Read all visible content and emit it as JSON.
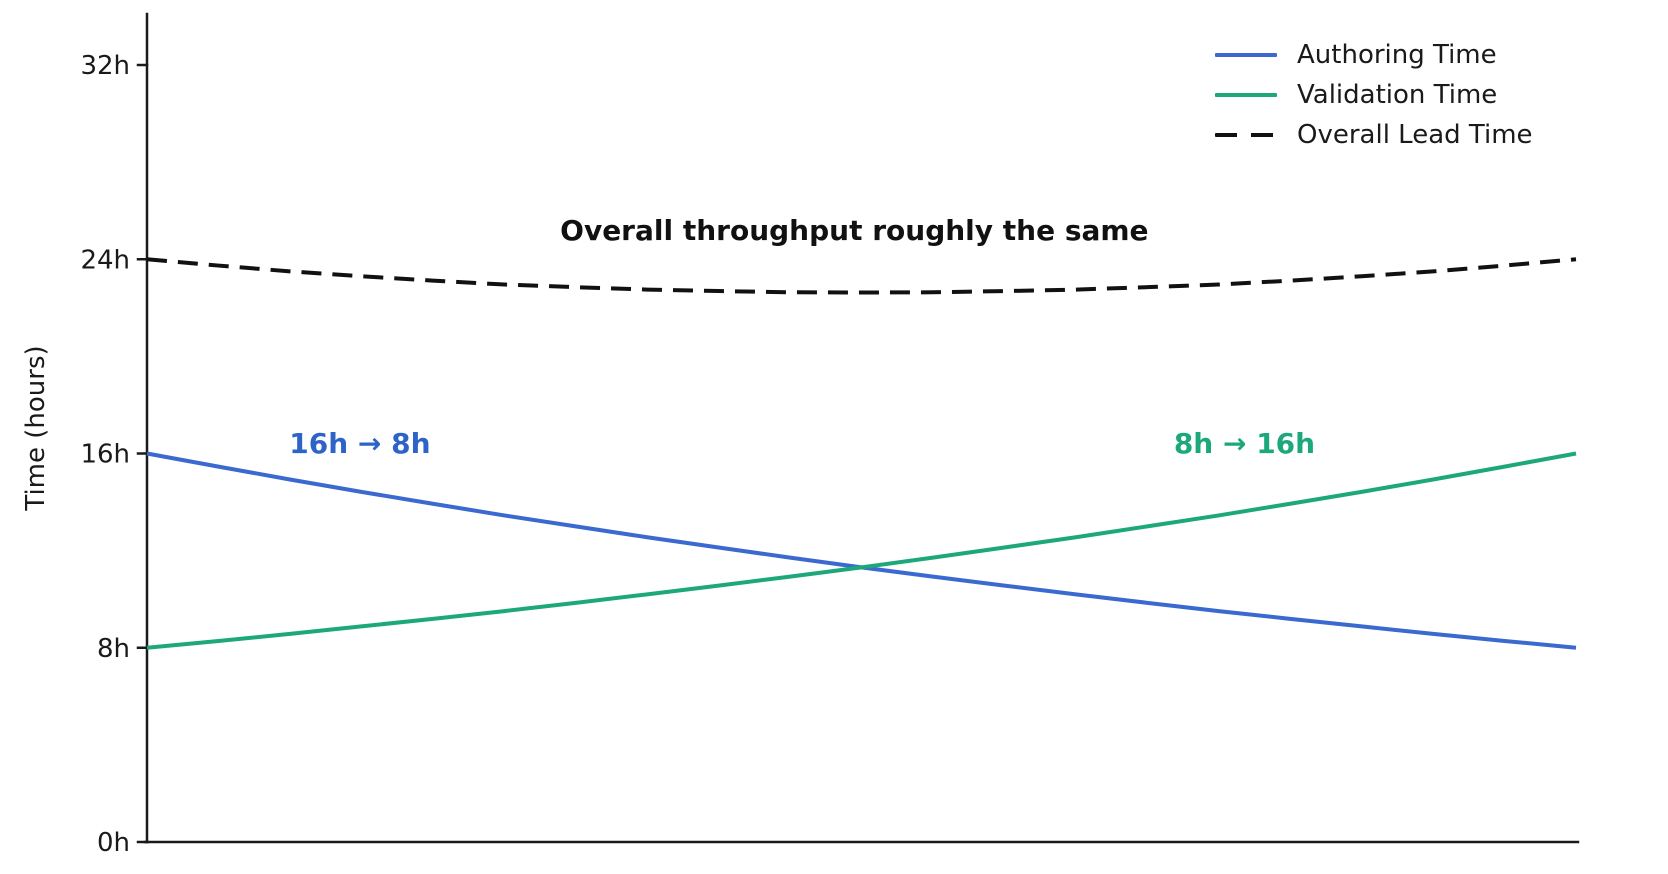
{
  "axis_color": "#1a1a1a",
  "text_color": "#1a1a1a",
  "background_color": "#ffffff",
  "chart_data": {
    "type": "line",
    "title": "",
    "xlabel": "",
    "ylabel": "Time (hours)",
    "x_range": [
      0,
      1
    ],
    "x_ticks_visible": false,
    "ylim": [
      0,
      34
    ],
    "grid": false,
    "legend_position": "upper right",
    "yticks": [
      {
        "value": 0,
        "label": "0h"
      },
      {
        "value": 8,
        "label": "8h"
      },
      {
        "value": 16,
        "label": "16h"
      },
      {
        "value": 24,
        "label": "24h"
      },
      {
        "value": 32,
        "label": "32h"
      }
    ],
    "x": [
      0,
      0.05,
      0.1,
      0.15,
      0.2,
      0.25,
      0.3,
      0.35,
      0.4,
      0.45,
      0.5,
      0.55,
      0.6,
      0.65,
      0.7,
      0.75,
      0.8,
      0.85,
      0.9,
      0.95,
      1
    ],
    "series": [
      {
        "name": "Authoring Time",
        "color": "#3a69d0",
        "dash": false,
        "start_value_hours": 16,
        "end_value_hours": 8,
        "values": [
          16,
          15.46,
          14.93,
          14.42,
          13.93,
          13.45,
          13,
          12.55,
          12.13,
          11.71,
          11.31,
          10.93,
          10.56,
          10.2,
          9.85,
          9.51,
          9.19,
          8.88,
          8.57,
          8.28,
          8
        ]
      },
      {
        "name": "Validation Time",
        "color": "#1da87c",
        "dash": false,
        "start_value_hours": 8,
        "end_value_hours": 16,
        "values": [
          8,
          8.28,
          8.57,
          8.88,
          9.19,
          9.51,
          9.85,
          10.2,
          10.56,
          10.93,
          11.31,
          11.71,
          12.13,
          12.55,
          13,
          13.45,
          13.93,
          14.42,
          14.93,
          15.46,
          16
        ]
      },
      {
        "name": "Overall Lead Time",
        "color": "#111111",
        "dash": true,
        "start_value_hours": 24,
        "end_value_hours": 24,
        "values": [
          24,
          23.74,
          23.5,
          23.3,
          23.12,
          22.96,
          22.85,
          22.75,
          22.69,
          22.64,
          22.63,
          22.64,
          22.69,
          22.75,
          22.85,
          22.96,
          23.12,
          23.3,
          23.5,
          23.74,
          24
        ]
      }
    ],
    "annotations": [
      {
        "text": "Overall throughput roughly the same",
        "x": 0.495,
        "y": 25.2,
        "color": "#111111"
      },
      {
        "text": "16h → 8h",
        "x": 0.149,
        "y": 16.43,
        "color": "#2e63c8"
      },
      {
        "text": "8h → 16h",
        "x": 0.768,
        "y": 16.43,
        "color": "#1da87c"
      }
    ]
  }
}
